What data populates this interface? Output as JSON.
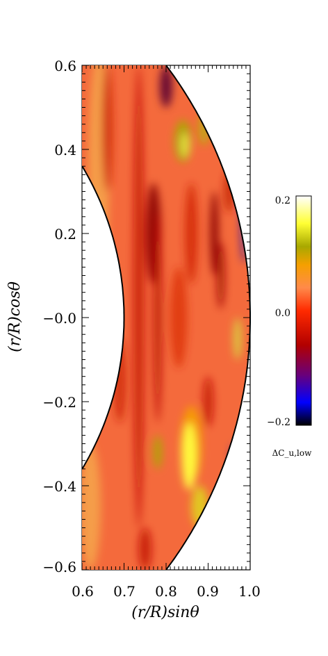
{
  "chart_data": {
    "type": "heatmap",
    "title": "",
    "xlabel": "(r/R)sinθ",
    "ylabel": "(r/R)cosθ",
    "xlim": [
      0.6,
      1.0
    ],
    "ylim": [
      -0.6,
      0.6
    ],
    "x_ticks": [
      "0.6",
      "0.7",
      "0.8",
      "0.9",
      "1.0"
    ],
    "y_ticks": [
      "0.6",
      "0.4",
      "0.2",
      "−0.0",
      "−0.2",
      "−0.4",
      "−0.6"
    ],
    "domain": {
      "r_inner": 0.7,
      "r_outer": 1.0,
      "shape": "meridional shell section"
    },
    "colorbar": {
      "label": "ΔC_u,low",
      "ticks": [
        "0.2",
        "0.0",
        "−0.2"
      ],
      "range": [
        -0.2,
        0.2
      ],
      "colormap": [
        "#000000",
        "#0000ff",
        "#6a007a",
        "#b20000",
        "#ff2a00",
        "#ff8a4a",
        "#f5a000",
        "#a8a800",
        "#ffff33",
        "#ffffff"
      ]
    },
    "features": [
      {
        "region": "bulk of shell",
        "value": 0.02,
        "color": "#f46a3c"
      },
      {
        "region": "dark radial streaks near x=0.72-0.78",
        "value": -0.06,
        "color": "#b81000"
      },
      {
        "region": "yellow patch x≈0.85, y≈-0.35",
        "value": 0.15,
        "color": "#ffff40"
      },
      {
        "region": "yellow patch x≈0.87, y≈0.42",
        "value": 0.1,
        "color": "#d7d020"
      },
      {
        "region": "blue edge near outer surface",
        "value": -0.15,
        "color": "#1a1ab8"
      }
    ]
  }
}
